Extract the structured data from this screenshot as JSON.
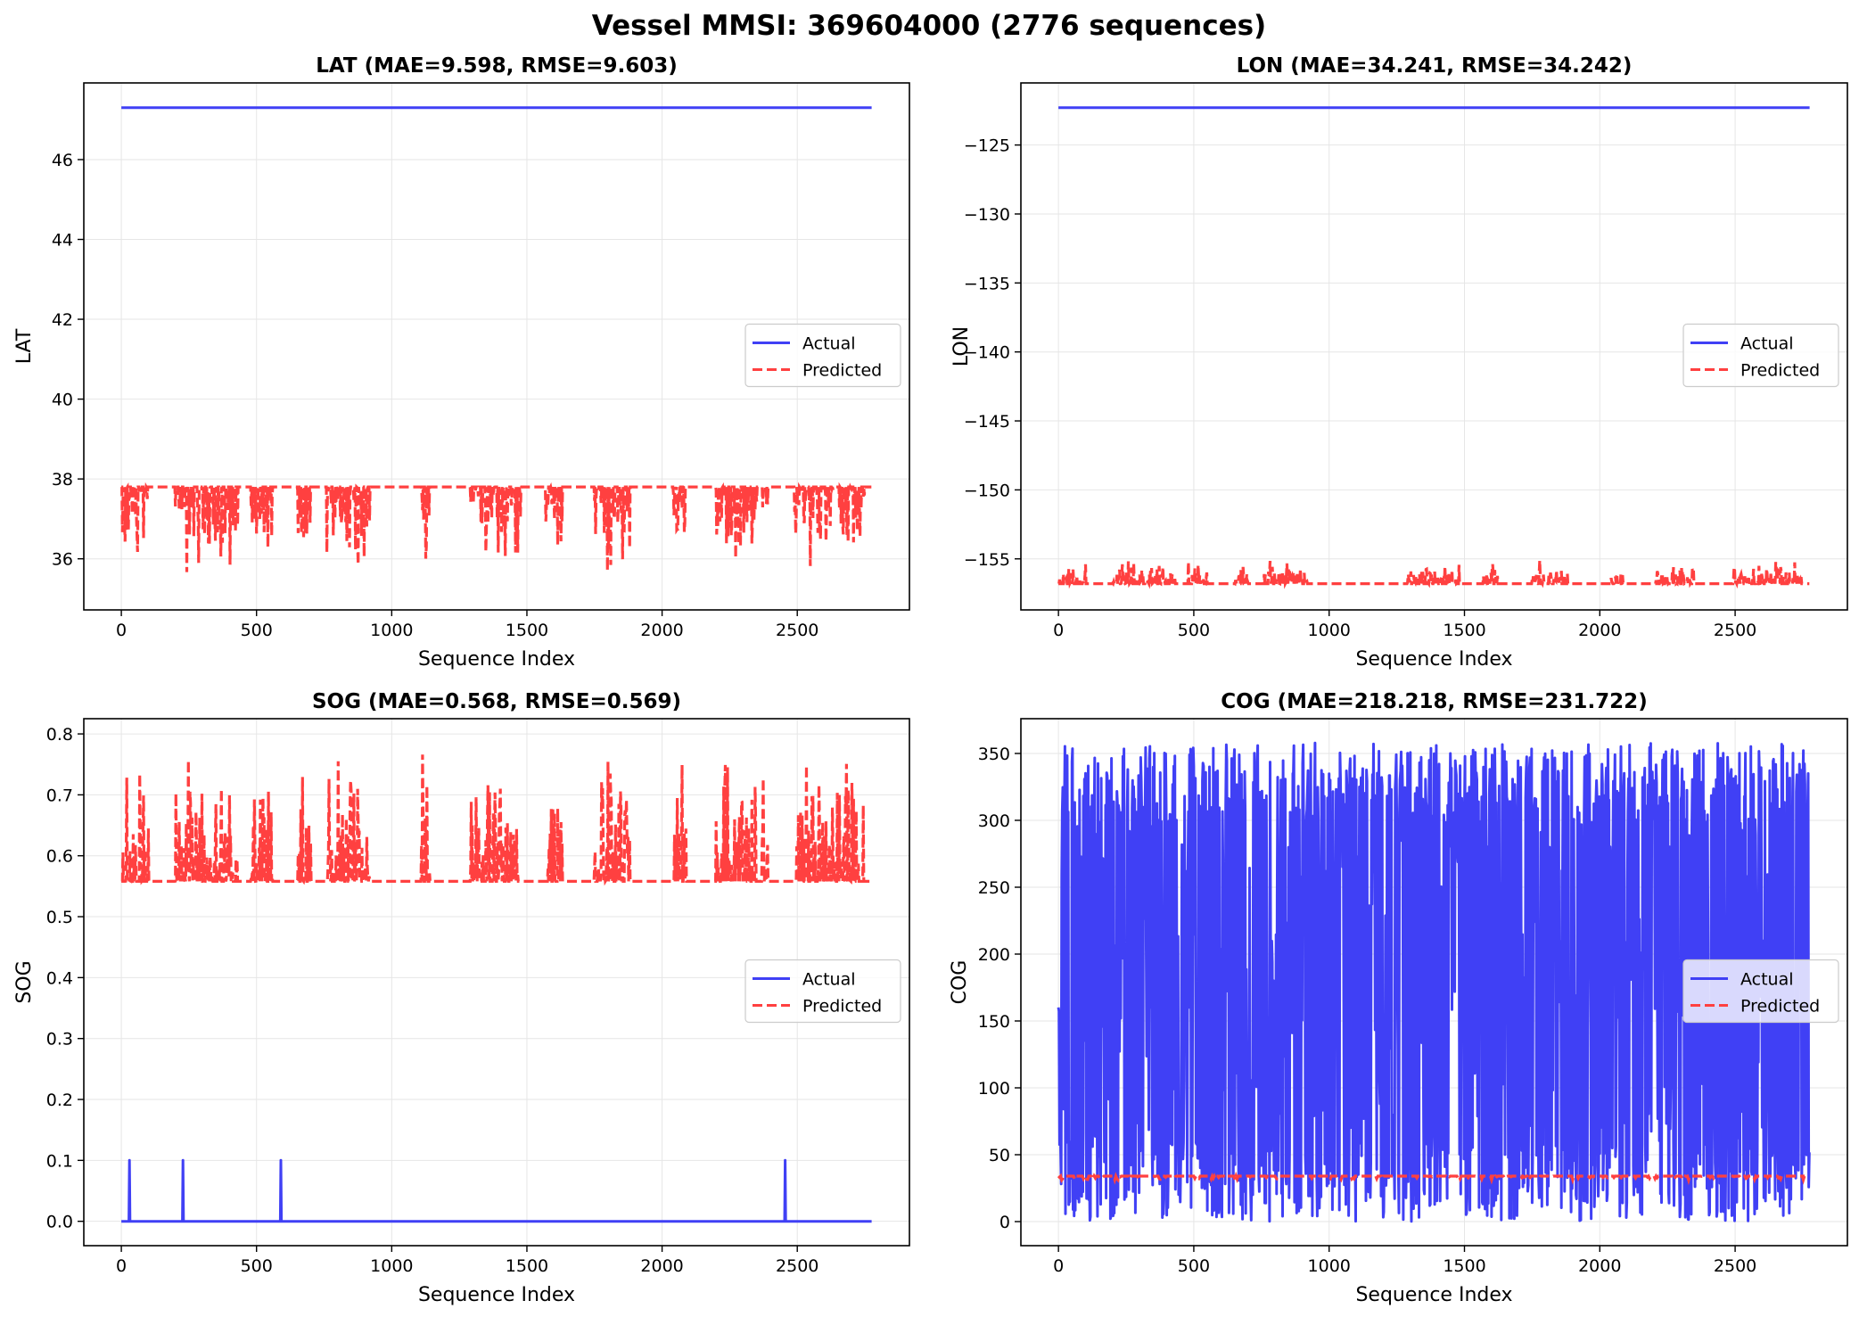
{
  "figure": {
    "title": "Vessel MMSI: 369604000 (2776 sequences)"
  },
  "colors": {
    "actual": "#4040f5",
    "predicted": "#ff4040",
    "grid": "#e6e6e6",
    "axes": "#000000"
  },
  "legend": {
    "actual_label": "Actual",
    "predicted_label": "Predicted",
    "placement": "center-right"
  },
  "chart_data": [
    {
      "type": "line",
      "title": "LAT (MAE=9.598, RMSE=9.603)",
      "xlabel": "Sequence Index",
      "ylabel": "LAT",
      "xlim": [
        -138.8,
        2914.8
      ],
      "ylim": [
        34.72,
        47.92
      ],
      "xticks": [
        0,
        500,
        1000,
        1500,
        2000,
        2500
      ],
      "yticks": [
        36,
        38,
        40,
        42,
        44,
        46
      ],
      "ytick_labels": [
        "36",
        "38",
        "40",
        "42",
        "44",
        "46"
      ],
      "grid": true,
      "series": [
        {
          "name": "Actual",
          "style": "solid",
          "constant": 47.3,
          "x_range": [
            0,
            2775
          ]
        },
        {
          "name": "Predicted",
          "style": "dashed",
          "baseline": 37.8,
          "deviation": "down",
          "range": [
            35.5,
            37.8
          ],
          "active_ranges": [
            [
              0,
              100
            ],
            [
              200,
              430
            ],
            [
              480,
              560
            ],
            [
              650,
              700
            ],
            [
              760,
              920
            ],
            [
              1110,
              1140
            ],
            [
              1290,
              1480
            ],
            [
              1570,
              1630
            ],
            [
              1750,
              1880
            ],
            [
              2040,
              2090
            ],
            [
              2200,
              2350
            ],
            [
              2370,
              2390
            ],
            [
              2490,
              2750
            ]
          ],
          "x_range": [
            0,
            2775
          ]
        }
      ]
    },
    {
      "type": "line",
      "title": "LON (MAE=34.241, RMSE=34.242)",
      "xlabel": "Sequence Index",
      "ylabel": "LON",
      "xlim": [
        -138.8,
        2914.8
      ],
      "ylim": [
        -158.7,
        -120.5
      ],
      "xticks": [
        0,
        500,
        1000,
        1500,
        2000,
        2500
      ],
      "yticks": [
        -155,
        -150,
        -145,
        -140,
        -135,
        -130,
        -125
      ],
      "ytick_labels": [
        "−155",
        "−150",
        "−145",
        "−140",
        "−135",
        "−130",
        "−125"
      ],
      "grid": true,
      "series": [
        {
          "name": "Actual",
          "style": "solid",
          "constant": -122.3,
          "x_range": [
            0,
            2775
          ]
        },
        {
          "name": "Predicted",
          "style": "dashed",
          "baseline": -156.8,
          "deviation": "up",
          "range": [
            -156.8,
            -155.0
          ],
          "active_ranges": [
            [
              0,
              100
            ],
            [
              200,
              430
            ],
            [
              480,
              560
            ],
            [
              650,
              700
            ],
            [
              760,
              920
            ],
            [
              1290,
              1480
            ],
            [
              1570,
              1630
            ],
            [
              1750,
              1880
            ],
            [
              2040,
              2090
            ],
            [
              2200,
              2350
            ],
            [
              2490,
              2750
            ]
          ],
          "x_range": [
            0,
            2775
          ]
        }
      ]
    },
    {
      "type": "line",
      "title": "SOG (MAE=0.568, RMSE=0.569)",
      "xlabel": "Sequence Index",
      "ylabel": "SOG",
      "xlim": [
        -138.8,
        2914.8
      ],
      "ylim": [
        -0.04,
        0.825
      ],
      "xticks": [
        0,
        500,
        1000,
        1500,
        2000,
        2500
      ],
      "yticks": [
        0.0,
        0.1,
        0.2,
        0.3,
        0.4,
        0.5,
        0.6,
        0.7,
        0.8
      ],
      "ytick_labels": [
        "0.0",
        "0.1",
        "0.2",
        "0.3",
        "0.4",
        "0.5",
        "0.6",
        "0.7",
        "0.8"
      ],
      "grid": true,
      "series": [
        {
          "name": "Actual",
          "style": "solid",
          "constant": 0.0,
          "spikes": [
            {
              "x": 30,
              "y": 0.1
            },
            {
              "x": 228,
              "y": 0.1
            },
            {
              "x": 590,
              "y": 0.1
            },
            {
              "x": 2455,
              "y": 0.1
            }
          ],
          "x_range": [
            0,
            2775
          ]
        },
        {
          "name": "Predicted",
          "style": "dashed",
          "baseline": 0.558,
          "deviation": "up",
          "range": [
            0.558,
            0.785
          ],
          "active_ranges": [
            [
              0,
              100
            ],
            [
              200,
              430
            ],
            [
              480,
              560
            ],
            [
              650,
              700
            ],
            [
              760,
              920
            ],
            [
              1110,
              1140
            ],
            [
              1290,
              1480
            ],
            [
              1570,
              1630
            ],
            [
              1750,
              1880
            ],
            [
              2040,
              2090
            ],
            [
              2200,
              2350
            ],
            [
              2370,
              2390
            ],
            [
              2490,
              2750
            ]
          ],
          "x_range": [
            0,
            2775
          ]
        }
      ]
    },
    {
      "type": "line",
      "title": "COG (MAE=218.218, RMSE=231.722)",
      "xlabel": "Sequence Index",
      "ylabel": "COG",
      "xlim": [
        -138.8,
        2914.8
      ],
      "ylim": [
        -18,
        376
      ],
      "xticks": [
        0,
        500,
        1000,
        1500,
        2000,
        2500
      ],
      "yticks": [
        0,
        50,
        100,
        150,
        200,
        250,
        300,
        350
      ],
      "ytick_labels": [
        "0",
        "50",
        "100",
        "150",
        "200",
        "250",
        "300",
        "350"
      ],
      "grid": true,
      "series": [
        {
          "name": "Actual",
          "style": "solid",
          "range": [
            0,
            358
          ],
          "x_range": [
            0,
            2775
          ],
          "behavior": "oscillating heading values"
        },
        {
          "name": "Predicted",
          "style": "dashed",
          "baseline": 34,
          "deviation": "down",
          "range": [
            31,
            35
          ],
          "x_range": [
            0,
            2775
          ]
        }
      ]
    }
  ]
}
